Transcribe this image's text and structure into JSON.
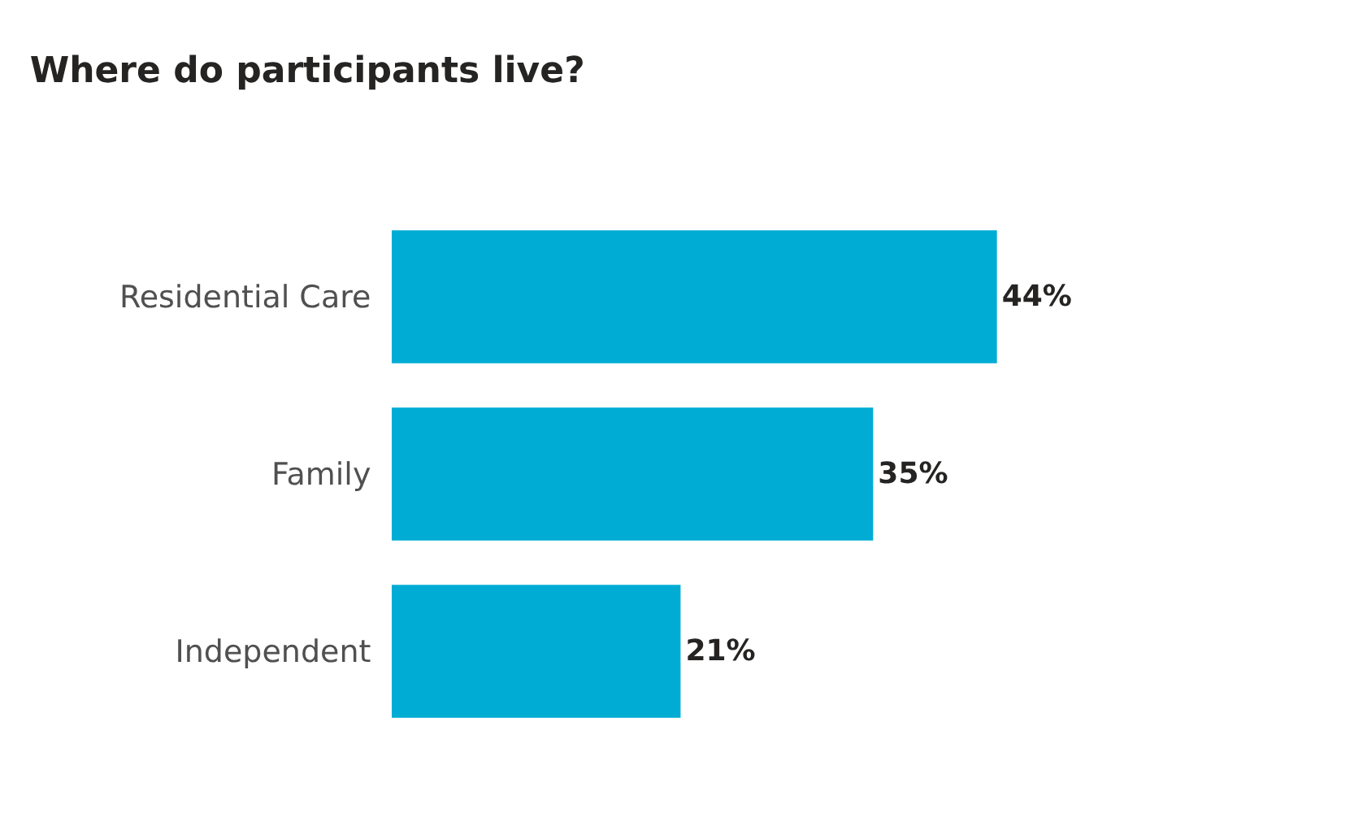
{
  "chart_data": {
    "type": "bar",
    "orientation": "horizontal",
    "title": "Where do participants live?",
    "categories": [
      "Residential Care",
      "Family",
      "Independent"
    ],
    "values": [
      44,
      35,
      21
    ],
    "value_labels": [
      "44%",
      "35%",
      "21%"
    ],
    "color": "#00acd4",
    "tick_labels": "y"
  }
}
